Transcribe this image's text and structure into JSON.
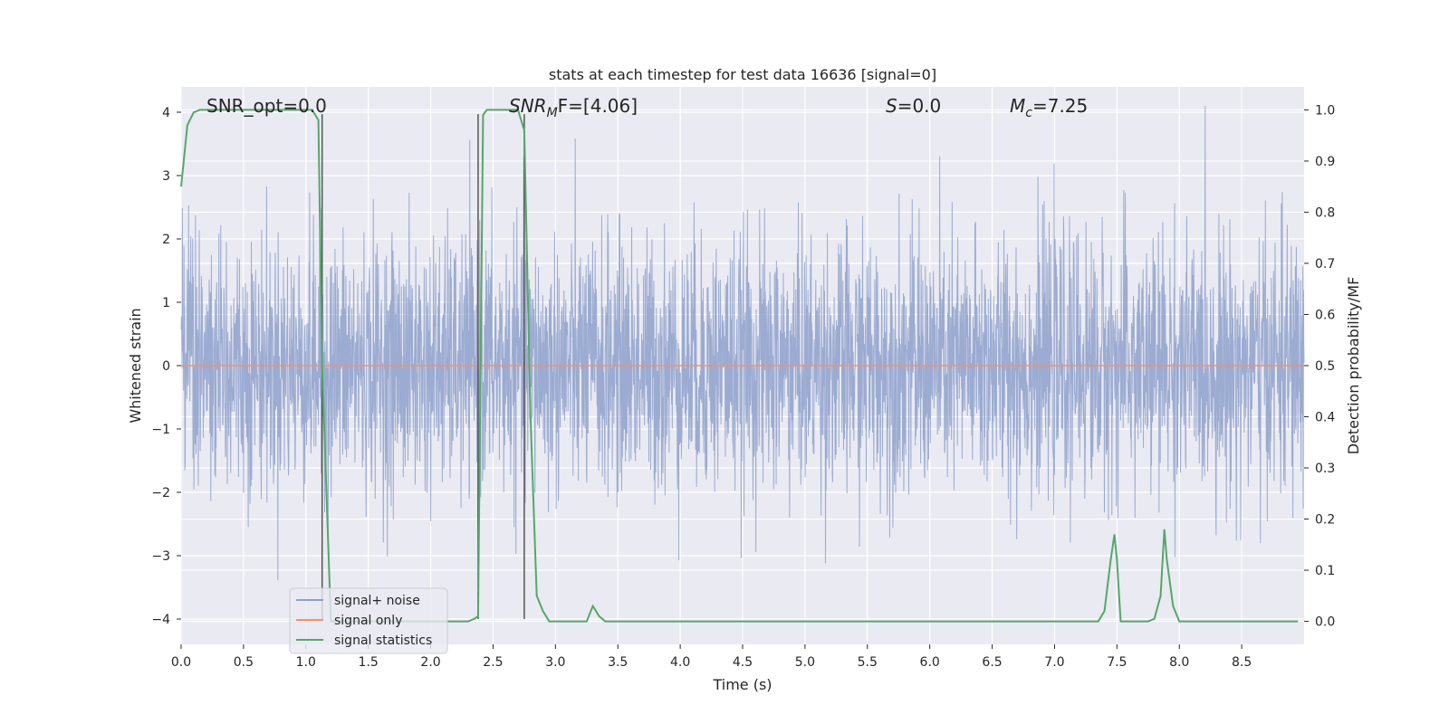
{
  "chart_data": {
    "type": "line",
    "title": "stats at each timestep for test data 16636 [signal=0]",
    "xlabel": "Time (s)",
    "ylabel_left": "Whitened strain",
    "ylabel_right": "Detection probability/MF",
    "xlim": [
      0.0,
      9.0
    ],
    "ylim_left": [
      -4.4,
      4.4
    ],
    "ylim_right": [
      -0.045,
      1.045
    ],
    "grid": true,
    "x_ticks": [
      "0.0",
      "0.5",
      "1.0",
      "1.5",
      "2.0",
      "2.5",
      "3.0",
      "3.5",
      "4.0",
      "4.5",
      "5.0",
      "5.5",
      "6.0",
      "6.5",
      "7.0",
      "7.5",
      "8.0",
      "8.5"
    ],
    "y_ticks_left": [
      "4",
      "3",
      "2",
      "1",
      "0",
      "−1",
      "−2",
      "−3",
      "−4"
    ],
    "y_ticks_right": [
      "1.0",
      "0.9",
      "0.8",
      "0.7",
      "0.6",
      "0.5",
      "0.4",
      "0.3",
      "0.2",
      "0.1",
      "0.0"
    ],
    "annotations": {
      "snr_opt": "SNR_opt=0.0",
      "snr_mf_main": "SNR",
      "snr_mf_sub": "M",
      "snr_mf_rest": "F=[4.06]",
      "s_main": "S",
      "s_rest": "=0.0",
      "mc_main": "M",
      "mc_sub": "c",
      "mc_rest": "=7.25"
    },
    "vertical_lines_x": [
      1.13,
      2.38,
      2.75
    ],
    "series": [
      {
        "name": "signal+ noise",
        "color": "#8da0cb",
        "description_values": "whitened noise, approx. symmetric around 0, amplitude mostly within ±2.5, peaks to ~±4",
        "amplitude_std": 1.0
      },
      {
        "name": "signal only",
        "color": "#fc8d62",
        "values_constant": 0.0
      },
      {
        "name": "signal statistics",
        "color": "#55a868",
        "axis": "right",
        "x": [
          0.0,
          0.05,
          0.1,
          0.15,
          0.2,
          0.3,
          0.5,
          0.7,
          0.9,
          1.0,
          1.05,
          1.1,
          1.13,
          1.2,
          1.3,
          1.5,
          1.7,
          1.9,
          2.1,
          2.3,
          2.35,
          2.38,
          2.42,
          2.45,
          2.5,
          2.6,
          2.7,
          2.75,
          2.8,
          2.85,
          2.9,
          2.95,
          3.0,
          3.1,
          3.2,
          3.25,
          3.3,
          3.35,
          3.4,
          3.45,
          3.5,
          4.0,
          4.5,
          5.0,
          5.5,
          6.0,
          6.5,
          7.0,
          7.35,
          7.4,
          7.45,
          7.48,
          7.5,
          7.53,
          7.55,
          7.6,
          7.7,
          7.75,
          7.8,
          7.85,
          7.88,
          7.9,
          7.95,
          8.0,
          8.5,
          8.95
        ],
        "values": [
          0.85,
          0.97,
          0.995,
          1.0,
          1.0,
          1.0,
          1.0,
          1.0,
          1.0,
          1.0,
          1.0,
          0.98,
          0.5,
          0.0,
          0.0,
          0.0,
          0.0,
          0.0,
          0.0,
          0.0,
          0.005,
          0.01,
          0.99,
          1.0,
          1.0,
          1.0,
          1.0,
          0.96,
          0.4,
          0.05,
          0.02,
          0.0,
          0.0,
          0.0,
          0.0,
          0.0,
          0.03,
          0.01,
          0.0,
          0.0,
          0.0,
          0.0,
          0.0,
          0.0,
          0.0,
          0.0,
          0.0,
          0.0,
          0.0,
          0.02,
          0.12,
          0.17,
          0.12,
          0.0,
          0.0,
          0.0,
          0.0,
          0.0,
          0.005,
          0.05,
          0.18,
          0.12,
          0.03,
          0.0,
          0.0,
          0.0
        ]
      }
    ],
    "legend": {
      "placement": "lower-left",
      "entries": [
        "signal+ noise",
        "signal only",
        "signal statistics"
      ]
    }
  }
}
